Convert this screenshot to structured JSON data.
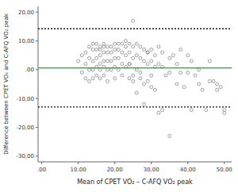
{
  "chart_data": {
    "type": "scatter",
    "title": "",
    "xlabel": "Mean of CPET VO₂ – C-AFQ VO₂ peak",
    "ylabel": "Difference between CPET VO₂ and C-AFQ VO₂ peak",
    "xlim": [
      -1,
      52
    ],
    "ylim": [
      -32,
      22
    ],
    "xticks": [
      {
        "value": 0,
        "label": ".00"
      },
      {
        "value": 10,
        "label": "10,00"
      },
      {
        "value": 20,
        "label": "20,00"
      },
      {
        "value": 30,
        "label": "30,00"
      },
      {
        "value": 40,
        "label": "40,00"
      },
      {
        "value": 50,
        "label": "50,00"
      }
    ],
    "yticks": [
      {
        "value": -30,
        "label": "-30,00"
      },
      {
        "value": -20,
        "label": "-20,00"
      },
      {
        "value": -10,
        "label": "-10,00"
      },
      {
        "value": 0,
        "label": ".00"
      },
      {
        "value": 10,
        "label": "10,00"
      },
      {
        "value": 20,
        "label": "20,00"
      }
    ],
    "grid": false,
    "color": "#888888",
    "marker": "hollow-circle",
    "x": [
      10,
      11,
      11,
      12,
      12,
      12,
      13,
      13,
      13,
      13,
      14,
      14,
      14,
      14,
      14,
      15,
      15,
      15,
      15,
      15,
      16,
      16,
      16,
      16,
      16,
      16,
      17,
      17,
      17,
      17,
      17,
      17,
      18,
      18,
      18,
      18,
      18,
      19,
      19,
      19,
      19,
      20,
      20,
      20,
      20,
      20,
      21,
      21,
      21,
      21,
      22,
      22,
      22,
      22,
      23,
      23,
      23,
      23,
      24,
      24,
      24,
      24,
      25,
      25,
      25,
      25,
      26,
      26,
      26,
      27,
      27,
      27,
      28,
      28,
      28,
      29,
      29,
      29,
      30,
      30,
      30,
      31,
      31,
      32,
      32,
      33,
      33,
      34,
      35,
      35,
      36,
      37,
      38,
      38,
      40,
      40,
      41,
      42,
      43,
      45,
      46,
      47,
      48,
      49,
      50,
      26,
      25,
      24,
      27,
      28,
      29,
      30,
      31,
      32,
      33,
      35,
      37,
      39,
      41,
      43,
      44,
      46,
      48,
      50
    ],
    "values": [
      3,
      5,
      -1,
      6,
      2,
      -3,
      8,
      4,
      0,
      -4,
      9,
      7,
      3,
      0,
      -3,
      9,
      7,
      4,
      1,
      -2,
      8,
      7,
      5,
      2,
      0,
      -3,
      9,
      8,
      6,
      3,
      1,
      -2,
      8,
      6,
      3,
      0,
      -4,
      8,
      6,
      3,
      0,
      9,
      7,
      4,
      1,
      -3,
      9,
      7,
      4,
      0,
      9,
      6,
      2,
      -2,
      10,
      8,
      5,
      1,
      9,
      6,
      2,
      -3,
      17,
      8,
      4,
      -2,
      9,
      5,
      0,
      8,
      4,
      -3,
      7,
      3,
      -5,
      6,
      2,
      -4,
      7,
      3,
      -2,
      5,
      1,
      8,
      2,
      6,
      1,
      -2,
      4,
      -1,
      5,
      2,
      7,
      -1,
      5,
      -1,
      3,
      -2,
      0,
      -14,
      3,
      -4,
      -7,
      -6,
      -15,
      -8,
      -4,
      2,
      -1,
      -12,
      6,
      -6,
      -7,
      -15,
      -14,
      -23,
      -5,
      -6,
      -14,
      -5,
      -7,
      -4,
      -5,
      -14
    ],
    "lines": [
      {
        "value": 0.625,
        "color": "#00bb00",
        "line_style": "solid"
      },
      {
        "value": 14.21,
        "color": "#111111",
        "line_style": "dotted"
      },
      {
        "value": -12.96,
        "color": "#111111",
        "line_style": "dotted"
      }
    ]
  }
}
